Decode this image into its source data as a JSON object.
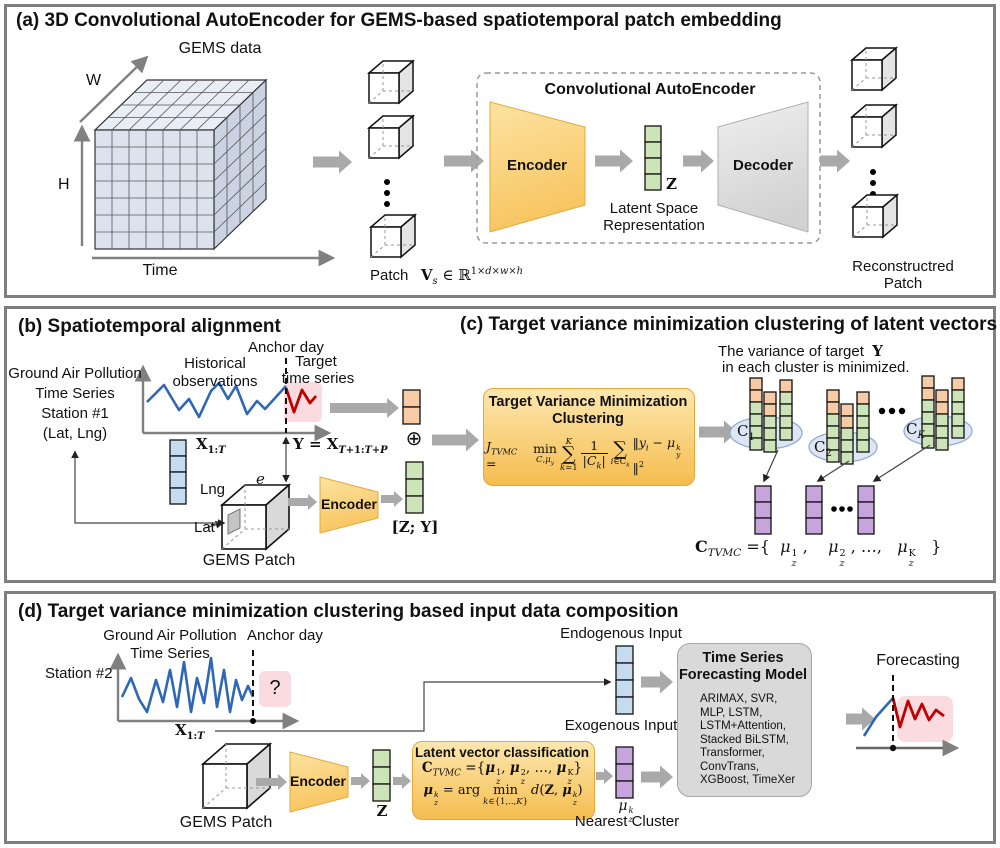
{
  "colors": {
    "encoder_yellow": "#F8C75D",
    "decoder_gray": "#D9D9D9",
    "latent_green": "#CDE4B8",
    "vector_blue": "#C5DCF0",
    "vector_orange": "#F7CBA6",
    "vector_purple": "#C7A4DC",
    "series_blue": "#2E66B8",
    "target_red": "#C00000",
    "highlight_pink": "#FADCE0",
    "cluster_ellipse_blue": "#DCE6F4",
    "model_box_gray": "#D9D9D9",
    "flow_arrow_gray": "#A9A9A9",
    "panel_border_gray": "#7F7F7F"
  },
  "panel_a": {
    "title": "(a) 3D Convolutional AutoEncoder for GEMS-based spatiotemporal patch embedding",
    "gems_data_label": "GEMS data",
    "axis_w": "W",
    "axis_h": "H",
    "axis_time": "Time",
    "patch_formula_html": "Patch&nbsp;&nbsp;&nbsp;<span class=\"math\"><b>V</b><sub><i>s</i></sub> ∈ ℝ<sup>1×<i>d</i>×<i>w</i>×<i>h</i></sup></span>",
    "cae_box_title": "Convolutional  AutoEncoder",
    "encoder_label": "Encoder",
    "decoder_label": "Decoder",
    "latent_z": "Z",
    "latent_caption_line1": "Latent Space",
    "latent_caption_line2": "Representation",
    "reconstructed_line1": "Reconstructred",
    "reconstructed_line2": "Patch"
  },
  "panel_b": {
    "title": "(b) Spatiotemporal alignment",
    "station_lines": [
      "Ground Air Pollution",
      "Time Series",
      "Station #1",
      "(Lat, Lng)"
    ],
    "historical_line1": "Historical",
    "historical_line2": "observations",
    "anchor_day": "Anchor day",
    "target_line1": "Target",
    "target_line2": "time series",
    "x_formula_html": "<b>X</b><sub>1:<i>T</i></sub>",
    "y_formula_html": "<b>Y</b> = <b>X</b><sub><i>T</i>+1:<i>T</i>+<i>P</i></sub>",
    "lng": "Lng",
    "lat": "Lat",
    "e_label": "e",
    "gems_patch": "GEMS Patch",
    "encoder_label": "Encoder",
    "zy_html": "[<b>Z</b>; <b>Y</b>]",
    "oplus": "⊕"
  },
  "panel_c": {
    "title": "(c) Target variance minimization clustering of latent vectors",
    "note_line1_html": "The variance of target&nbsp; <span class=\"math\"><b>Y</b></span>",
    "note_line2": "in each cluster is minimized.",
    "box_title_line1": "Target Variance Minimization",
    "box_title_line2": "Clustering",
    "f_lhs_html": "<i>J</i><sub><i>TVMC</i></sub> =",
    "f_min": "min",
    "f_min_under_html": "<i>C</i>,<i>μ<sub>y</sub></i>",
    "f_sum": "∑",
    "f_sum1_top_html": "<i>K</i>",
    "f_sum1_under_html": "<i>k</i>=1",
    "f_frac_num": "1",
    "f_frac_den_html": "|<i>C<sub>k</sub></i>|",
    "f_sum2_under_html": "<i>i</i>∈C<sub><i>k</i></sub>",
    "f_rhs_html": "‖<i>y<sub>i</sub></i> − <i>μ</i><span class=\"ss\"><i>k</i><i>y</i></span>‖<sup>2</sup>",
    "cluster_labels_html": [
      "C<sub>1</sub>",
      "C<sub>2</sub>",
      "C<sub><i>K</i></sub>"
    ],
    "ctvmc_html": "<b>C</b><sub><i>TVMC</i></sub> ={&nbsp; <i>μ</i><span class=\"ss\"><span>1</span><i>z</i></span> ,&nbsp;&nbsp;&nbsp; <i>μ</i><span class=\"ss\"><span>2</span><i>z</i></span> , …,&nbsp;&nbsp; <i>μ</i><span class=\"ss\"><span>K</span><i>z</i></span>&nbsp;&nbsp; }"
  },
  "panel_d": {
    "title": "(d) Target variance minimization clustering based input data composition",
    "gap_line1": "Ground Air Pollution",
    "gap_line2": "Time Series",
    "anchor_day": "Anchor day",
    "station": "Station #2",
    "question_mark": "?",
    "x_formula_html": "<b>X</b><sub>1:<i>T</i></sub>",
    "endogenous": "Endogenous Input",
    "exogenous": "Exogenous Input",
    "gems_patch": "GEMS Patch",
    "encoder_label": "Encoder",
    "z_label": "Z",
    "class_box_title": "Latent vector classification",
    "line1_html": "<b>C</b><sub><i>TVMC</i></sub> ={<b><i>μ</i></b><span class=\"ss\"><span>1</span><i>z</i></span>, <b><i>μ</i></b><span class=\"ss\"><span>2</span><i>z</i></span>, …, <b><i>μ</i></b><span class=\"ss\"><span>K</span><i>z</i></span>}",
    "l2_a_html": "<b><i>μ</i></b><span class=\"ss\"><i>k</i><i>z</i></span> = arg",
    "l2_min": "min",
    "l2_min_under_html": "<i>k</i>∈{1,..,<i>K</i>}",
    "l2_b_html": "<i>d</i>(<b>Z</b>, <b><i>μ</i></b><span class=\"ss\"><i>k</i><i>z</i></span>)",
    "mu_zk_html": "<i>μ</i><span class=\"ss\"><i>k</i><i>z</i></span>",
    "nearest_cluster": "Nearest Cluster",
    "model_title_line1": "Time Series",
    "model_title_line2": "Forecasting Model",
    "model_list": [
      "ARIMAX, SVR,",
      "MLP, LSTM,",
      "LSTM+Attention,",
      "Stacked BiLSTM,",
      "Transformer,",
      "ConvTrans,",
      "XGBoost,  TimeXer"
    ],
    "forecasting": "Forecasting"
  }
}
